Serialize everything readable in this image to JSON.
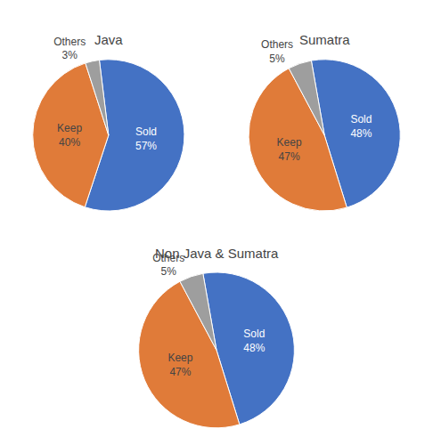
{
  "chart_data": [
    {
      "type": "pie",
      "title": "Java",
      "categories": [
        "Sold",
        "Keep",
        "Others"
      ],
      "values": [
        57,
        40,
        3
      ],
      "value_labels": [
        "57%",
        "40%",
        "3%"
      ],
      "colors": [
        "#4472C4",
        "#E07B39",
        "#9E9E9E"
      ],
      "data_labels": true
    },
    {
      "type": "pie",
      "title": "Sumatra",
      "categories": [
        "Sold",
        "Keep",
        "Others"
      ],
      "values": [
        48,
        47,
        5
      ],
      "value_labels": [
        "48%",
        "47%",
        "5%"
      ],
      "colors": [
        "#4472C4",
        "#E07B39",
        "#9E9E9E"
      ],
      "data_labels": true
    },
    {
      "type": "pie",
      "title": "Non Java & Sumatra",
      "categories": [
        "Sold",
        "Keep",
        "Others"
      ],
      "values": [
        48,
        47,
        5
      ],
      "value_labels": [
        "48%",
        "47%",
        "5%"
      ],
      "colors": [
        "#4472C4",
        "#E07B39",
        "#9E9E9E"
      ],
      "data_labels": true
    }
  ]
}
